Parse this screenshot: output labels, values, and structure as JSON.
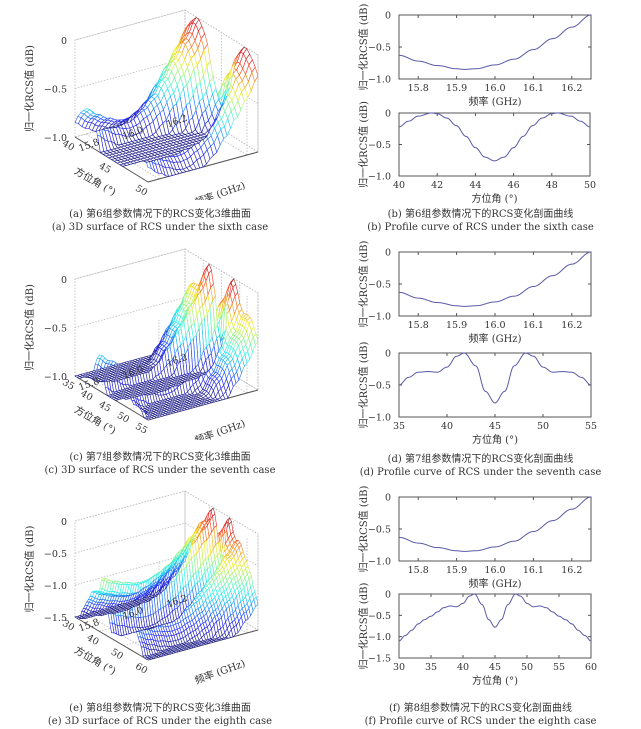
{
  "chart_data": [
    {
      "id": "a",
      "type": "surface3d",
      "title": "",
      "caption_cn": "(a) 第6组参数情况下的RCS变化3维曲面",
      "caption_en": "(a) 3D surface of RCS under the sixth case",
      "xlabel": "频率 (GHz)",
      "ylabel": "方位角 (°)",
      "zlabel": "归一化RCS值 (dB)",
      "x_range": [
        15.75,
        16.25
      ],
      "y_range": [
        40,
        50
      ],
      "z_range": [
        -1.0,
        0
      ],
      "x_ticks": [
        "15.8",
        "16.0",
        "16.2"
      ],
      "x_tick_values": [
        15.8,
        16.0,
        16.2
      ],
      "y_ticks": [
        "40",
        "45",
        "50"
      ],
      "y_tick_values": [
        40,
        45,
        50
      ],
      "z_ticks": [
        "0",
        "-0.5",
        "-1.0"
      ],
      "z_tick_values": [
        0,
        -0.5,
        -1.0
      ],
      "profile_ref": "b",
      "colormap": "jet"
    },
    {
      "id": "b",
      "type": "line",
      "caption_cn": "(b) 第6组参数情况下的RCS变化剖面曲线",
      "caption_en": "(b) Profile curve of RCS under the sixth case",
      "subplots": [
        {
          "xlabel": "频率 (GHz)",
          "ylabel": "归一化RCS值 (dB)",
          "xlim": [
            15.75,
            16.25
          ],
          "ylim": [
            -1.0,
            0
          ],
          "x_ticks": [
            "15.8",
            "15.9",
            "16.0",
            "16.1",
            "16.2"
          ],
          "x_tick_values": [
            15.8,
            15.9,
            16.0,
            16.1,
            16.2
          ],
          "y_ticks": [
            "0",
            "-0.5",
            "-1.0"
          ],
          "y_tick_values": [
            0,
            -0.5,
            -1.0
          ],
          "series": [
            {
              "name": "freq-profile",
              "color": "#5a5aa8",
              "x": [
                15.75,
                15.8,
                15.85,
                15.9,
                15.92,
                15.95,
                16.0,
                16.05,
                16.1,
                16.15,
                16.2,
                16.25
              ],
              "y": [
                -0.63,
                -0.72,
                -0.79,
                -0.84,
                -0.85,
                -0.84,
                -0.78,
                -0.69,
                -0.54,
                -0.37,
                -0.19,
                0.0
              ]
            }
          ]
        },
        {
          "xlabel": "方位角 (°)",
          "ylabel": "归一化RCS值 (dB)",
          "xlim": [
            40,
            50
          ],
          "ylim": [
            -1.0,
            0
          ],
          "x_ticks": [
            "40",
            "42",
            "44",
            "46",
            "48",
            "50"
          ],
          "x_tick_values": [
            40,
            42,
            44,
            46,
            48,
            50
          ],
          "y_ticks": [
            "0",
            "-0.5",
            "-1.0"
          ],
          "y_tick_values": [
            0,
            -0.5,
            -1.0
          ],
          "series": [
            {
              "name": "azimuth-profile",
              "color": "#5a5aa8",
              "x": [
                40,
                40.5,
                41,
                41.7,
                42,
                42.5,
                43,
                43.5,
                44,
                44.5,
                45,
                45.5,
                46,
                46.5,
                47,
                47.5,
                48,
                48.3,
                49,
                49.5,
                50
              ],
              "y": [
                -0.22,
                -0.13,
                -0.05,
                0.0,
                -0.01,
                -0.08,
                -0.2,
                -0.37,
                -0.55,
                -0.7,
                -0.76,
                -0.7,
                -0.55,
                -0.37,
                -0.2,
                -0.08,
                -0.01,
                0.0,
                -0.05,
                -0.13,
                -0.22
              ]
            }
          ]
        }
      ]
    },
    {
      "id": "c",
      "type": "surface3d",
      "caption_cn": "(c) 第7组参数情况下的RCS变化3维曲面",
      "caption_en": "(c) 3D surface of RCS under the seventh case",
      "xlabel": "频率 (GHz)",
      "ylabel": "方位角 (°)",
      "zlabel": "归一化RCS值 (dB)",
      "x_range": [
        15.75,
        16.25
      ],
      "y_range": [
        35,
        55
      ],
      "z_range": [
        -1.0,
        0
      ],
      "x_ticks": [
        "15.8",
        "16.0",
        "16.2"
      ],
      "x_tick_values": [
        15.8,
        16.0,
        16.2
      ],
      "y_ticks": [
        "35",
        "40",
        "45",
        "50",
        "55"
      ],
      "y_tick_values": [
        35,
        40,
        45,
        50,
        55
      ],
      "z_ticks": [
        "0",
        "-0.5",
        "-1.0"
      ],
      "z_tick_values": [
        0,
        -0.5,
        -1.0
      ],
      "profile_ref": "d",
      "colormap": "jet"
    },
    {
      "id": "d",
      "type": "line",
      "caption_cn": "(d) 第7组参数情况下的RCS变化剖面曲线",
      "caption_en": "(d) Profile curve of RCS under the seventh case",
      "subplots": [
        {
          "xlabel": "频率 (GHz)",
          "ylabel": "归一化RCS值 (dB)",
          "xlim": [
            15.75,
            16.25
          ],
          "ylim": [
            -1.0,
            0
          ],
          "x_ticks": [
            "15.8",
            "15.9",
            "16.0",
            "16.1",
            "16.2"
          ],
          "x_tick_values": [
            15.8,
            15.9,
            16.0,
            16.1,
            16.2
          ],
          "y_ticks": [
            "0",
            "-0.5",
            "-1.0"
          ],
          "y_tick_values": [
            0,
            -0.5,
            -1.0
          ],
          "series": [
            {
              "name": "freq-profile",
              "color": "#5a5aa8",
              "x": [
                15.75,
                15.8,
                15.85,
                15.9,
                15.92,
                15.95,
                16.0,
                16.05,
                16.1,
                16.15,
                16.2,
                16.25
              ],
              "y": [
                -0.63,
                -0.72,
                -0.79,
                -0.84,
                -0.85,
                -0.84,
                -0.78,
                -0.69,
                -0.54,
                -0.37,
                -0.19,
                0.0
              ]
            }
          ]
        },
        {
          "xlabel": "方位角 (°)",
          "ylabel": "归一化RCS值 (dB)",
          "xlim": [
            35,
            55
          ],
          "ylim": [
            -1.0,
            0
          ],
          "x_ticks": [
            "35",
            "40",
            "45",
            "50",
            "55"
          ],
          "x_tick_values": [
            35,
            40,
            45,
            50,
            55
          ],
          "y_ticks": [
            "0",
            "-0.5",
            "-1.0"
          ],
          "y_tick_values": [
            0,
            -0.5,
            -1.0
          ],
          "series": [
            {
              "name": "azimuth-profile",
              "color": "#5a5aa8",
              "x": [
                35,
                36,
                37,
                38,
                39,
                40,
                41,
                41.8,
                43,
                44,
                45,
                46,
                47,
                48.2,
                49,
                50,
                51,
                52,
                53,
                54,
                55
              ],
              "y": [
                -0.5,
                -0.38,
                -0.3,
                -0.29,
                -0.3,
                -0.22,
                -0.05,
                0.0,
                -0.2,
                -0.6,
                -0.78,
                -0.6,
                -0.2,
                0.0,
                -0.05,
                -0.22,
                -0.3,
                -0.29,
                -0.3,
                -0.38,
                -0.5
              ]
            }
          ]
        }
      ]
    },
    {
      "id": "e",
      "type": "surface3d",
      "caption_cn": "(e) 第8组参数情况下的RCS变化3维曲面",
      "caption_en": "(e) 3D surface of RCS under the eighth case",
      "xlabel": "频率 (GHz)",
      "ylabel": "方位角 (°)",
      "zlabel": "归一化RCS值 (dB)",
      "x_range": [
        15.75,
        16.25
      ],
      "y_range": [
        30,
        60
      ],
      "z_range": [
        -1.5,
        0
      ],
      "x_ticks": [
        "15.8",
        "16.0",
        "16.2"
      ],
      "x_tick_values": [
        15.8,
        16.0,
        16.2
      ],
      "y_ticks": [
        "30",
        "40",
        "50",
        "60"
      ],
      "y_tick_values": [
        30,
        40,
        50,
        60
      ],
      "z_ticks": [
        "0",
        "-0.5",
        "-1.0",
        "-1.5"
      ],
      "z_tick_values": [
        0,
        -0.5,
        -1.0,
        -1.5
      ],
      "profile_ref": "f",
      "colormap": "jet"
    },
    {
      "id": "f",
      "type": "line",
      "caption_cn": "(f) 第8组参数情况下的RCS变化剖面曲线",
      "caption_en": "(f) Profile curve of RCS under the eighth case",
      "subplots": [
        {
          "xlabel": "频率 (GHz)",
          "ylabel": "归一化RCS值 (dB)",
          "xlim": [
            15.75,
            16.25
          ],
          "ylim": [
            -1.0,
            0
          ],
          "x_ticks": [
            "15.8",
            "15.9",
            "16.0",
            "16.1",
            "16.2"
          ],
          "x_tick_values": [
            15.8,
            15.9,
            16.0,
            16.1,
            16.2
          ],
          "y_ticks": [
            "0",
            "-0.5",
            "-1.0"
          ],
          "y_tick_values": [
            0,
            -0.5,
            -1.0
          ],
          "series": [
            {
              "name": "freq-profile",
              "color": "#5a5aa8",
              "x": [
                15.75,
                15.8,
                15.85,
                15.9,
                15.92,
                15.95,
                16.0,
                16.05,
                16.1,
                16.15,
                16.2,
                16.25
              ],
              "y": [
                -0.63,
                -0.72,
                -0.79,
                -0.84,
                -0.85,
                -0.84,
                -0.78,
                -0.69,
                -0.54,
                -0.37,
                -0.19,
                0.0
              ]
            }
          ]
        },
        {
          "xlabel": "方位角 (°)",
          "ylabel": "归一化RCS值 (dB)",
          "xlim": [
            30,
            60
          ],
          "ylim": [
            -1.5,
            0
          ],
          "x_ticks": [
            "30",
            "35",
            "40",
            "45",
            "50",
            "55",
            "60"
          ],
          "x_tick_values": [
            30,
            35,
            40,
            45,
            50,
            55,
            60
          ],
          "y_ticks": [
            "0",
            "-0.5",
            "-1.0",
            "-1.5"
          ],
          "y_tick_values": [
            0,
            -0.5,
            -1.0,
            -1.5
          ],
          "series": [
            {
              "name": "azimuth-profile",
              "color": "#5a5aa8",
              "x": [
                30,
                31,
                32,
                33,
                34,
                35,
                36,
                37,
                38,
                39,
                40,
                41,
                41.8,
                43,
                44,
                45,
                46,
                47,
                48.2,
                49,
                50,
                51,
                52,
                53,
                54,
                55,
                56,
                57,
                58,
                59,
                60
              ],
              "y": [
                -1.1,
                -0.97,
                -0.85,
                -0.7,
                -0.6,
                -0.52,
                -0.42,
                -0.32,
                -0.28,
                -0.3,
                -0.22,
                -0.05,
                0.0,
                -0.25,
                -0.6,
                -0.78,
                -0.6,
                -0.25,
                0.0,
                -0.05,
                -0.22,
                -0.3,
                -0.28,
                -0.32,
                -0.42,
                -0.52,
                -0.6,
                -0.7,
                -0.85,
                -0.97,
                -1.1
              ]
            }
          ]
        }
      ]
    }
  ]
}
